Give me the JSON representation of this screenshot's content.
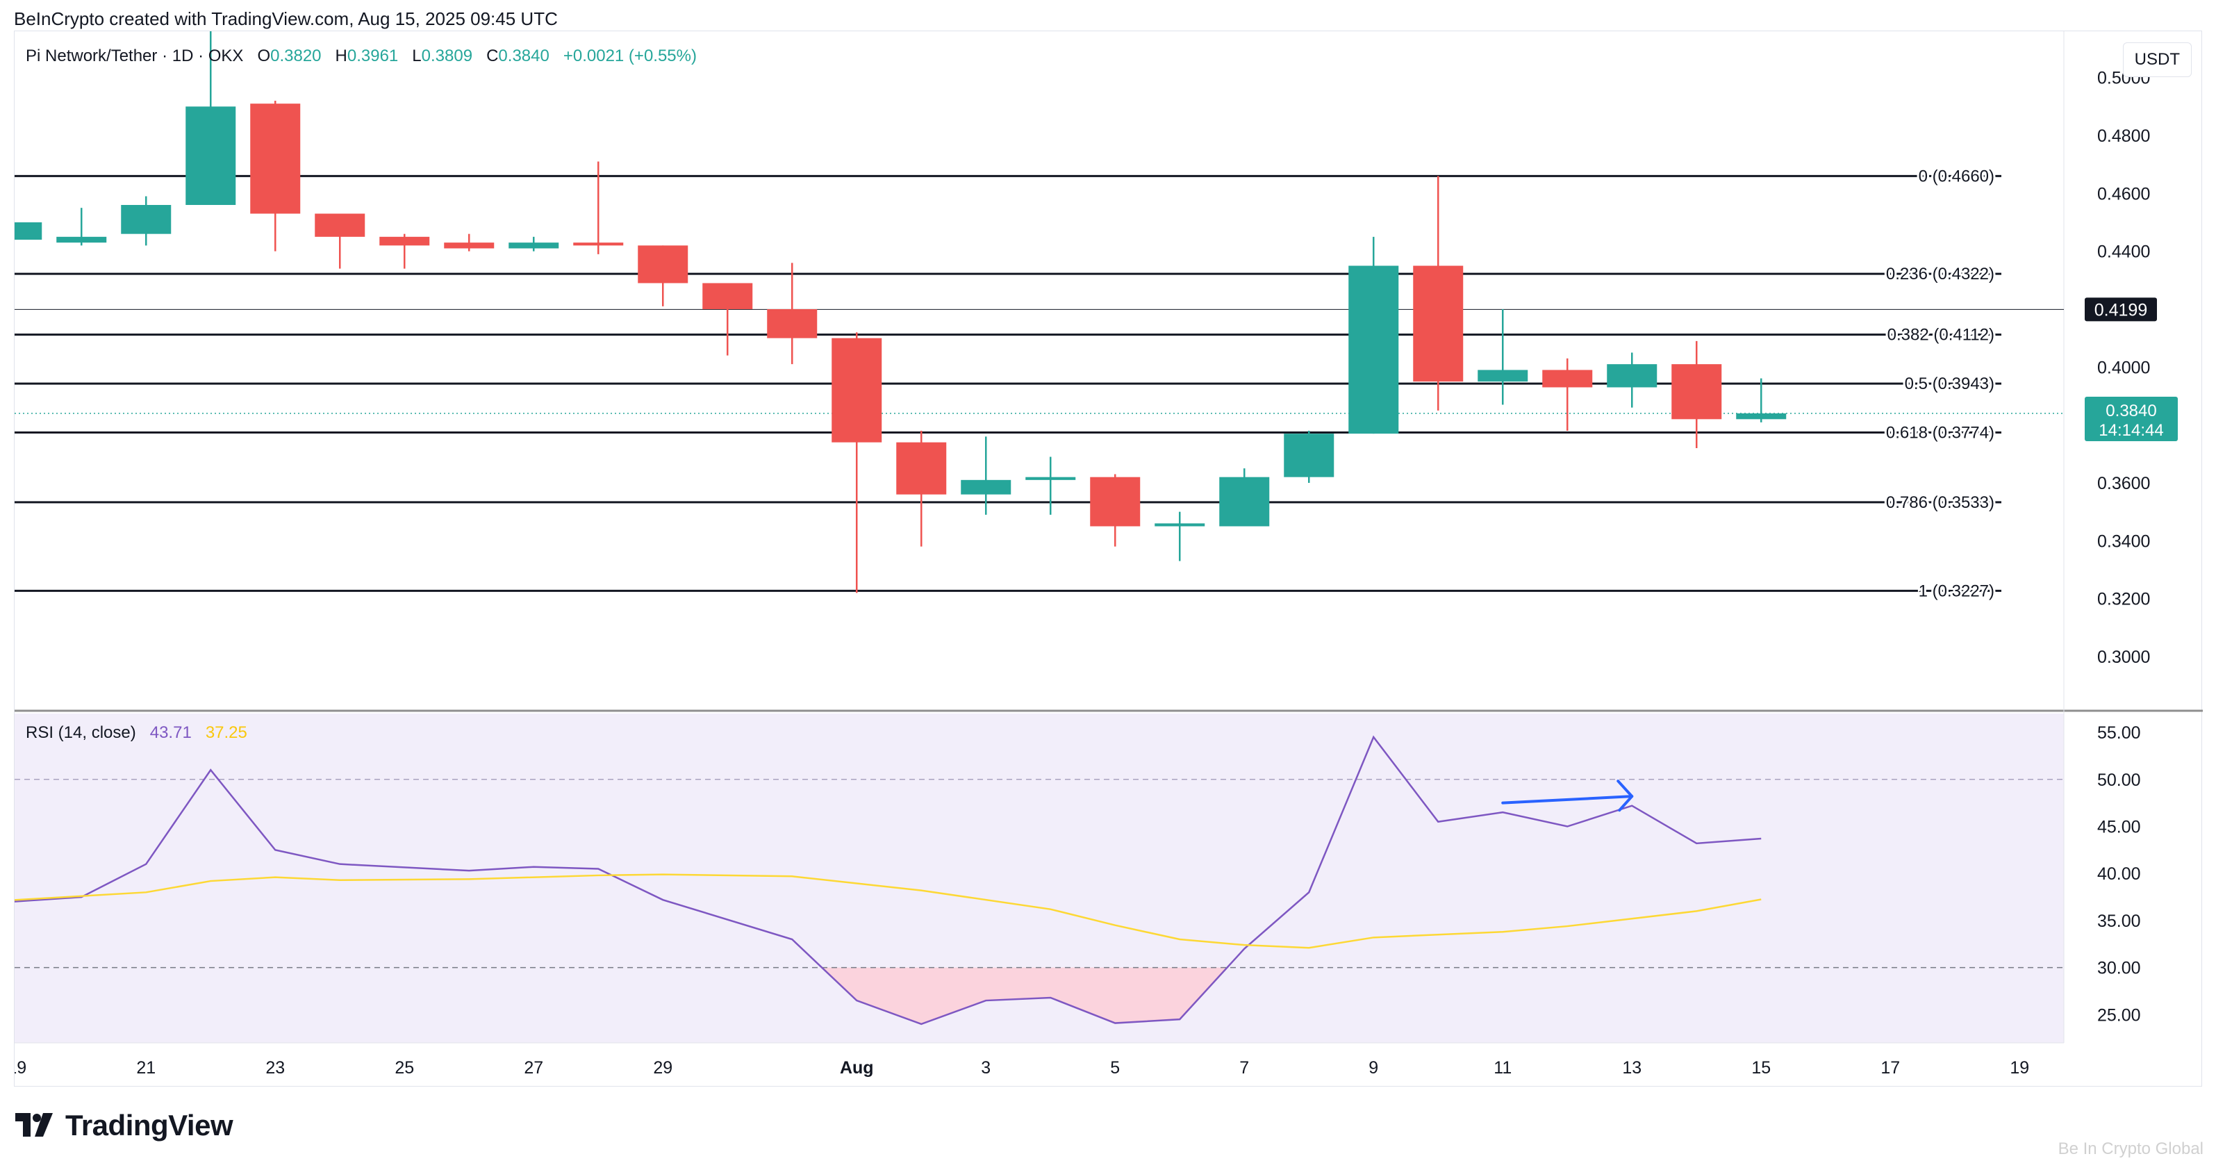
{
  "header": {
    "text": "BeInCrypto created with TradingView.com, Aug 15, 2025 09:45 UTC"
  },
  "legend": {
    "symbol": "Pi Network/Tether · 1D · OKX",
    "o_label": "O",
    "o": "0.3820",
    "h_label": "H",
    "h": "0.3961",
    "l_label": "L",
    "l": "0.3809",
    "c_label": "C",
    "c": "0.3840",
    "change": "+0.0021 (+0.55%)"
  },
  "currency": "USDT",
  "rsi_legend": {
    "label": "RSI (14, close)",
    "rsi": "43.71",
    "ma": "37.25"
  },
  "footer": {
    "brand": "TradingView",
    "watermark": "Be In Crypto Global"
  },
  "colors": {
    "up": "#26a69a",
    "down": "#ef5350",
    "rsi": "#7e57c2",
    "rsi_ma": "#fdd835",
    "arrow": "#2962ff"
  },
  "chart_data": [
    {
      "type": "candlestick",
      "title": "Pi Network/Tether · 1D · OKX",
      "y_axis": {
        "ticks": [
          "0.5000",
          "0.4800",
          "0.4600",
          "0.4400",
          "0.4000",
          "0.3600",
          "0.3400",
          "0.3200",
          "0.3000"
        ],
        "range": [
          0.288,
          0.516
        ]
      },
      "x_axis": {
        "ticks": [
          "19",
          "21",
          "23",
          "25",
          "27",
          "29",
          "Aug",
          "3",
          "5",
          "7",
          "9",
          "11",
          "13",
          "15",
          "17",
          "19"
        ],
        "tick_days": [
          19,
          21,
          23,
          25,
          27,
          29,
          32,
          34,
          36,
          38,
          40,
          42,
          44,
          46,
          48,
          50
        ]
      },
      "candles": [
        {
          "day": 19,
          "o": 0.444,
          "h": 0.45,
          "l": 0.444,
          "c": 0.45
        },
        {
          "day": 20,
          "o": 0.443,
          "h": 0.455,
          "l": 0.442,
          "c": 0.445
        },
        {
          "day": 21,
          "o": 0.446,
          "h": 0.459,
          "l": 0.442,
          "c": 0.456
        },
        {
          "day": 22,
          "o": 0.456,
          "h": 0.53,
          "l": 0.456,
          "c": 0.49
        },
        {
          "day": 23,
          "o": 0.491,
          "h": 0.492,
          "l": 0.44,
          "c": 0.453
        },
        {
          "day": 24,
          "o": 0.453,
          "h": 0.453,
          "l": 0.434,
          "c": 0.445
        },
        {
          "day": 25,
          "o": 0.445,
          "h": 0.446,
          "l": 0.434,
          "c": 0.442
        },
        {
          "day": 26,
          "o": 0.443,
          "h": 0.446,
          "l": 0.44,
          "c": 0.441
        },
        {
          "day": 27,
          "o": 0.441,
          "h": 0.445,
          "l": 0.44,
          "c": 0.443
        },
        {
          "day": 28,
          "o": 0.443,
          "h": 0.471,
          "l": 0.439,
          "c": 0.442
        },
        {
          "day": 29,
          "o": 0.442,
          "h": 0.442,
          "l": 0.421,
          "c": 0.429
        },
        {
          "day": 30,
          "o": 0.429,
          "h": 0.429,
          "l": 0.404,
          "c": 0.42
        },
        {
          "day": 31,
          "o": 0.42,
          "h": 0.436,
          "l": 0.401,
          "c": 0.41
        },
        {
          "day": 32,
          "o": 0.41,
          "h": 0.412,
          "l": 0.322,
          "c": 0.374
        },
        {
          "day": 33,
          "o": 0.374,
          "h": 0.378,
          "l": 0.338,
          "c": 0.356
        },
        {
          "day": 34,
          "o": 0.356,
          "h": 0.376,
          "l": 0.349,
          "c": 0.361
        },
        {
          "day": 35,
          "o": 0.361,
          "h": 0.369,
          "l": 0.349,
          "c": 0.362
        },
        {
          "day": 36,
          "o": 0.362,
          "h": 0.363,
          "l": 0.338,
          "c": 0.345
        },
        {
          "day": 37,
          "o": 0.345,
          "h": 0.35,
          "l": 0.333,
          "c": 0.346
        },
        {
          "day": 38,
          "o": 0.345,
          "h": 0.365,
          "l": 0.345,
          "c": 0.362
        },
        {
          "day": 39,
          "o": 0.362,
          "h": 0.378,
          "l": 0.36,
          "c": 0.377
        },
        {
          "day": 40,
          "o": 0.377,
          "h": 0.445,
          "l": 0.377,
          "c": 0.435
        },
        {
          "day": 41,
          "o": 0.435,
          "h": 0.466,
          "l": 0.385,
          "c": 0.395
        },
        {
          "day": 42,
          "o": 0.395,
          "h": 0.42,
          "l": 0.387,
          "c": 0.399
        },
        {
          "day": 43,
          "o": 0.399,
          "h": 0.403,
          "l": 0.378,
          "c": 0.393
        },
        {
          "day": 44,
          "o": 0.393,
          "h": 0.405,
          "l": 0.386,
          "c": 0.401
        },
        {
          "day": 45,
          "o": 0.401,
          "h": 0.409,
          "l": 0.372,
          "c": 0.382
        },
        {
          "day": 46,
          "o": 0.382,
          "h": 0.3961,
          "l": 0.3809,
          "c": 0.384
        }
      ],
      "fib_levels": [
        {
          "label": "0 (0.4660)",
          "value": 0.466
        },
        {
          "label": "0.236 (0.4322)",
          "value": 0.4322
        },
        {
          "label": "0.382 (0.4112)",
          "value": 0.4112
        },
        {
          "label": "0.5 (0.3943)",
          "value": 0.3943
        },
        {
          "label": "0.618 (0.3774)",
          "value": 0.3774
        },
        {
          "label": "0.786 (0.3533)",
          "value": 0.3533
        },
        {
          "label": "1 (0.3227)",
          "value": 0.3227
        }
      ],
      "crosshair": {
        "value": 0.4199,
        "label": "0.4199"
      },
      "last_price": {
        "value": 0.384,
        "label": "0.3840",
        "countdown": "14:14:44"
      }
    },
    {
      "type": "line",
      "title": "RSI (14, close)",
      "y_axis": {
        "ticks": [
          "55.00",
          "50.00",
          "45.00",
          "40.00",
          "35.00",
          "30.00",
          "25.00"
        ],
        "range": [
          22,
          57
        ]
      },
      "bands": [
        30,
        50,
        70
      ],
      "series": [
        {
          "name": "RSI",
          "values": [
            [
              18.5,
              36.8
            ],
            [
              20,
              37.5
            ],
            [
              21,
              41
            ],
            [
              22,
              51
            ],
            [
              23,
              42.5
            ],
            [
              24,
              41
            ],
            [
              26,
              40.3
            ],
            [
              27,
              40.7
            ],
            [
              28,
              40.5
            ],
            [
              29,
              37.2
            ],
            [
              31,
              33
            ],
            [
              32,
              26.5
            ],
            [
              33,
              24
            ],
            [
              34,
              26.5
            ],
            [
              35,
              26.8
            ],
            [
              36,
              24.1
            ],
            [
              37,
              24.5
            ],
            [
              38,
              32
            ],
            [
              39,
              38
            ],
            [
              40,
              54.5
            ],
            [
              41,
              45.5
            ],
            [
              42,
              46.5
            ],
            [
              43,
              45
            ],
            [
              44,
              47.2
            ],
            [
              45,
              43.2
            ],
            [
              46,
              43.71
            ]
          ]
        },
        {
          "name": "RSI MA",
          "values": [
            [
              18.5,
              37
            ],
            [
              21,
              38
            ],
            [
              22,
              39.2
            ],
            [
              23,
              39.6
            ],
            [
              24,
              39.3
            ],
            [
              26,
              39.4
            ],
            [
              28,
              39.8
            ],
            [
              29,
              39.9
            ],
            [
              31,
              39.7
            ],
            [
              33,
              38.2
            ],
            [
              35,
              36.2
            ],
            [
              36,
              34.5
            ],
            [
              37,
              33
            ],
            [
              38,
              32.4
            ],
            [
              39,
              32.1
            ],
            [
              40,
              33.2
            ],
            [
              42,
              33.8
            ],
            [
              43,
              34.4
            ],
            [
              44,
              35.2
            ],
            [
              45,
              36
            ],
            [
              46,
              37.25
            ]
          ]
        }
      ],
      "annotation_arrow": {
        "from": [
          42,
          47.5
        ],
        "to": [
          44,
          48.2
        ]
      }
    }
  ]
}
